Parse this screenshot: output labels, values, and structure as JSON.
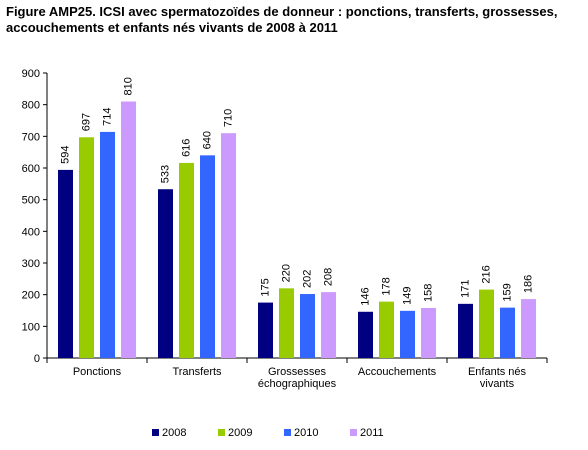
{
  "chart_data": {
    "type": "bar",
    "title": "Figure AMP25. ICSI avec spermatozoïdes de donneur : ponctions, transferts, grossesses, accouchements et enfants nés vivants de 2008 à 2011",
    "categories": [
      "Ponctions",
      "Transferts",
      "Grossesses échographiques",
      "Accouchements",
      "Enfants nés vivants"
    ],
    "series": [
      {
        "name": "2008",
        "color": "#000080",
        "values": [
          594,
          533,
          175,
          146,
          171
        ]
      },
      {
        "name": "2009",
        "color": "#99cc00",
        "values": [
          697,
          616,
          220,
          178,
          216
        ]
      },
      {
        "name": "2010",
        "color": "#3366ff",
        "values": [
          714,
          640,
          202,
          149,
          159
        ]
      },
      {
        "name": "2011",
        "color": "#cc99ff",
        "values": [
          810,
          710,
          208,
          158,
          186
        ]
      }
    ],
    "ylim": [
      0,
      900
    ],
    "yticks": [
      0,
      100,
      200,
      300,
      400,
      500,
      600,
      700,
      800,
      900
    ],
    "xlabel": "",
    "ylabel": "",
    "grid": false,
    "legend_position": "bottom"
  }
}
